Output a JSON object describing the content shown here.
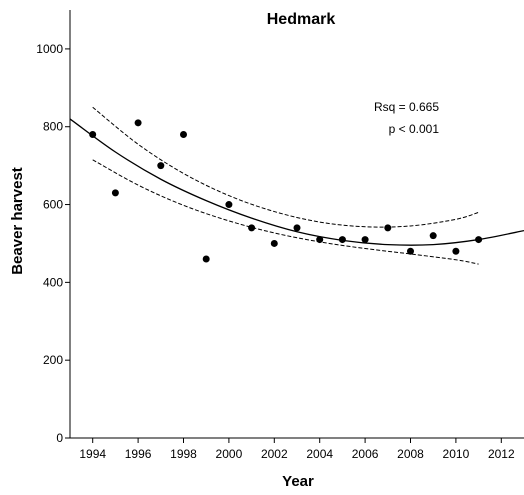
{
  "chart_data": {
    "type": "scatter",
    "title": "Hedmark",
    "xlabel": "Year",
    "ylabel": "Beaver harvest",
    "xlim": [
      1993,
      2013
    ],
    "ylim": [
      0,
      1100
    ],
    "xticks": [
      1994,
      1996,
      1998,
      2000,
      2002,
      2004,
      2006,
      2008,
      2010,
      2012
    ],
    "yticks": [
      0,
      200,
      400,
      600,
      800,
      1000
    ],
    "points": {
      "x": [
        1994,
        1995,
        1996,
        1997,
        1998,
        1999,
        2000,
        2001,
        2002,
        2003,
        2004,
        2005,
        2006,
        2007,
        2008,
        2009,
        2010,
        2011
      ],
      "y": [
        780,
        630,
        810,
        700,
        780,
        460,
        600,
        540,
        500,
        540,
        510,
        510,
        510,
        540,
        480,
        520,
        480,
        510
      ]
    },
    "fit": {
      "x": [
        1993,
        1995,
        1997,
        1999,
        2001,
        2003,
        2005,
        2007,
        2009,
        2011,
        2013
      ],
      "y": [
        820,
        735,
        665,
        610,
        565,
        530,
        508,
        497,
        497,
        510,
        533
      ]
    },
    "ci_upper": {
      "x": [
        1994,
        1996,
        1998,
        2000,
        2002,
        2004,
        2006,
        2008,
        2010,
        2011
      ],
      "y": [
        850,
        755,
        680,
        623,
        582,
        555,
        543,
        545,
        562,
        580
      ]
    },
    "ci_lower": {
      "x": [
        1994,
        1996,
        1998,
        2000,
        2002,
        2004,
        2006,
        2008,
        2010,
        2011
      ],
      "y": [
        715,
        650,
        598,
        558,
        527,
        504,
        487,
        473,
        458,
        447
      ]
    },
    "annotations": [
      "Rsq = 0.665",
      "p < 0.001"
    ],
    "grid": false,
    "legend": "none"
  }
}
